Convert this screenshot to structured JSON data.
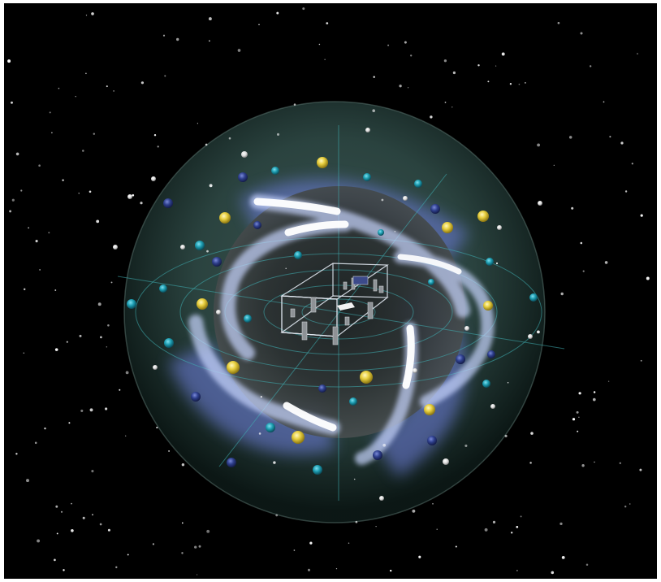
{
  "scene": {
    "subject": "",
    "background_color": "#000000",
    "sphere_color": "#2f4a46",
    "inner_sphere_color": "#3a3e3e",
    "grid_line_color": "#3fb0b4",
    "swirl_color": "#c8d6ff",
    "particle_colors": {
      "gold": "#e8d040",
      "teal": "#1c9cb0",
      "navy": "#2e3f8c",
      "white": "#e8e8e8"
    },
    "room_line_color": "#dfe6ee"
  }
}
